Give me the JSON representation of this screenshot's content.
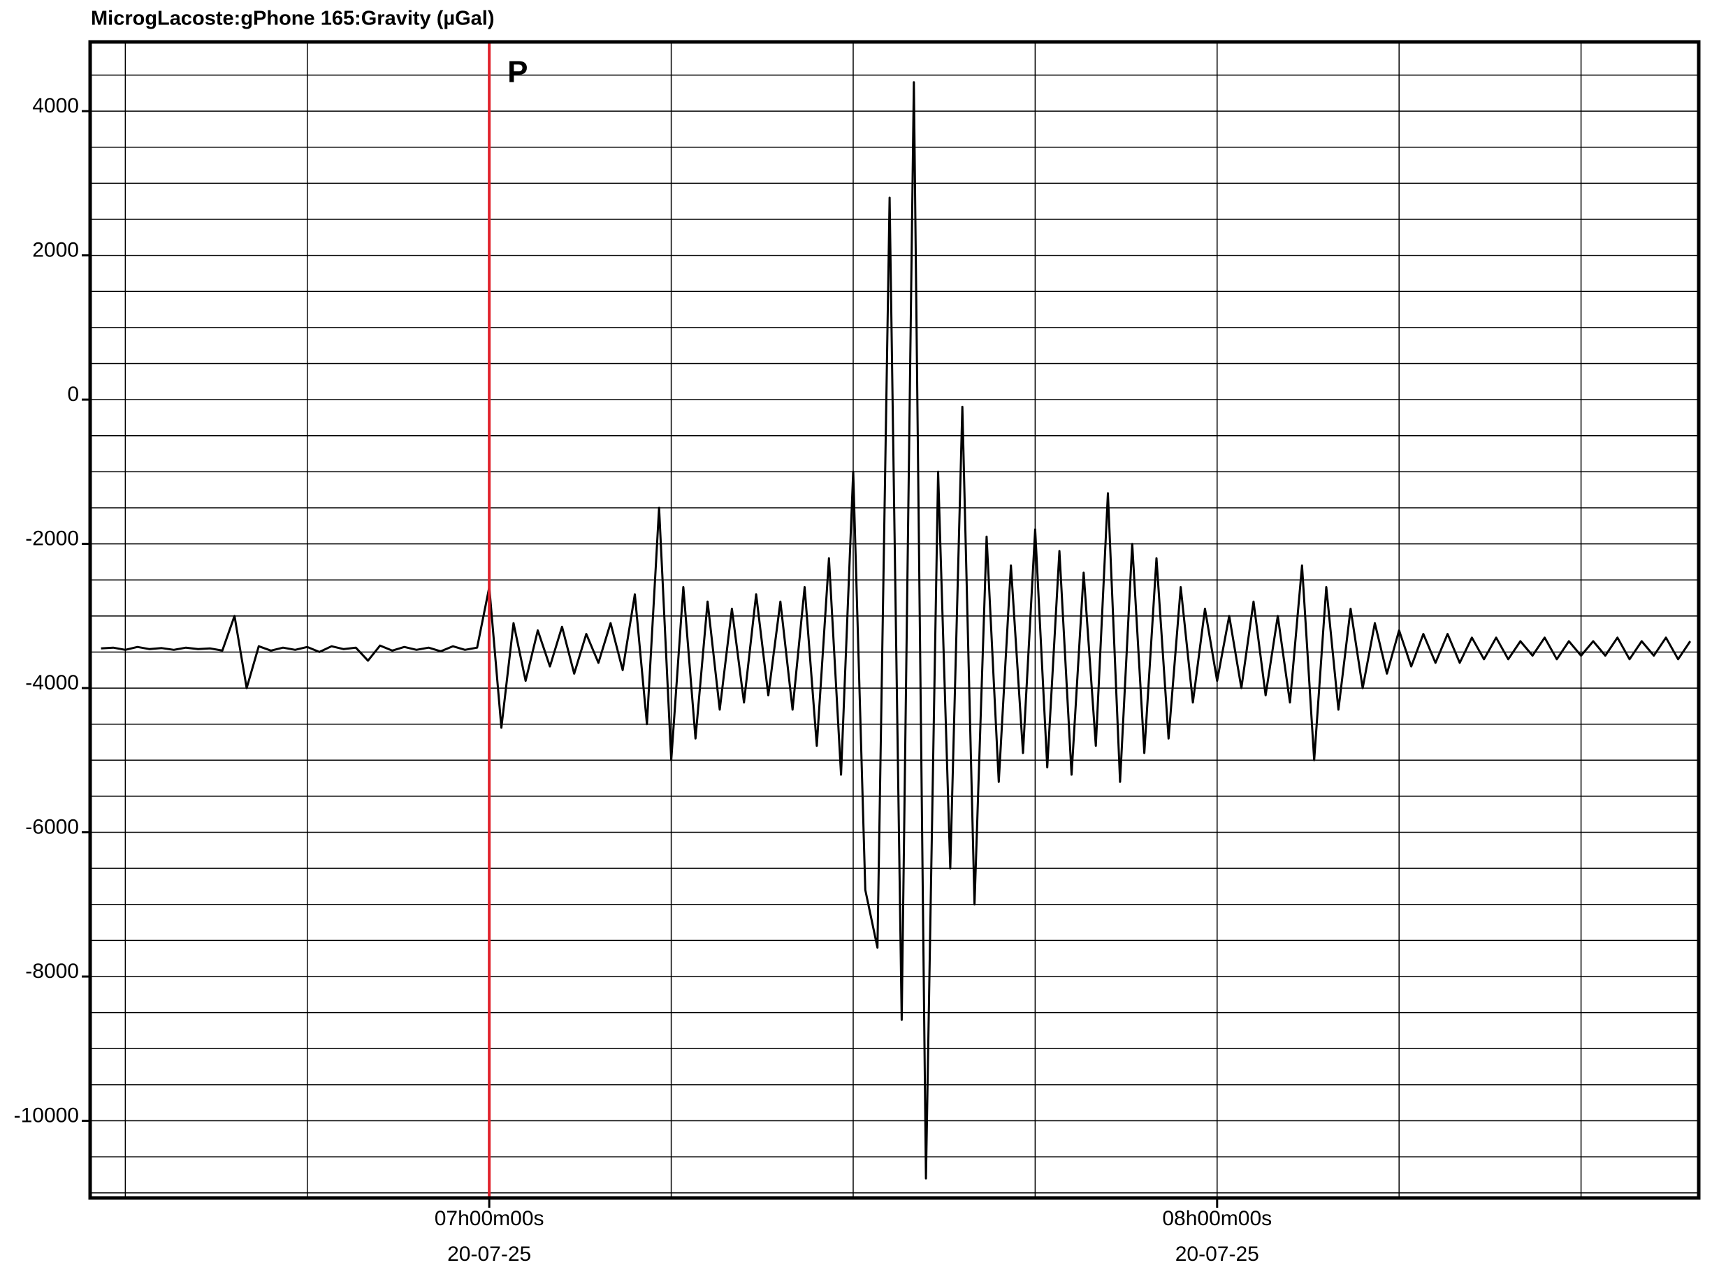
{
  "chart_data": {
    "type": "line",
    "title": "MicrogLacoste:gPhone 165:Gravity (µGal)",
    "x": [
      388,
      389,
      390,
      391,
      392,
      393,
      394,
      395,
      396,
      397,
      398,
      399,
      400,
      401,
      402,
      403,
      404,
      405,
      406,
      407,
      408,
      409,
      410,
      411,
      412,
      413,
      414,
      415,
      416,
      417,
      418,
      419,
      420,
      421,
      422,
      423,
      424,
      425,
      426,
      427,
      428,
      429,
      430,
      431,
      432,
      433,
      434,
      435,
      436,
      437,
      438,
      439,
      440,
      441,
      442,
      443,
      444,
      445,
      446,
      447,
      448,
      449,
      450,
      451,
      452,
      453,
      454,
      455,
      456,
      457,
      458,
      459,
      460,
      461,
      462,
      463,
      464,
      465,
      466,
      467,
      468,
      469,
      470,
      471,
      472,
      473,
      474,
      475,
      476,
      477,
      478,
      479,
      480,
      481,
      482,
      483,
      484,
      485,
      486,
      487,
      488,
      489,
      490,
      491,
      492,
      493,
      494,
      495,
      496,
      497,
      498,
      499,
      500,
      501,
      502,
      503,
      504,
      505,
      506,
      507,
      508,
      509,
      510,
      511,
      512,
      513,
      514,
      515,
      516,
      517,
      518,
      519
    ],
    "values": [
      -3450,
      -3440,
      -3470,
      -3430,
      -3460,
      -3445,
      -3470,
      -3440,
      -3460,
      -3450,
      -3480,
      -3000,
      -4000,
      -3420,
      -3480,
      -3440,
      -3470,
      -3430,
      -3500,
      -3420,
      -3460,
      -3440,
      -3620,
      -3410,
      -3480,
      -3430,
      -3470,
      -3440,
      -3490,
      -3420,
      -3470,
      -3440,
      -2600,
      -4550,
      -3100,
      -3900,
      -3200,
      -3700,
      -3150,
      -3800,
      -3250,
      -3650,
      -3100,
      -3750,
      -2700,
      -4500,
      -1500,
      -5000,
      -2600,
      -4700,
      -2800,
      -4300,
      -2900,
      -4200,
      -2700,
      -4100,
      -2800,
      -4300,
      -2600,
      -4800,
      -2200,
      -5200,
      -1000,
      -6800,
      -7600,
      2800,
      -8600,
      4400,
      -10800,
      -1000,
      -6500,
      -100,
      -7000,
      -1900,
      -5300,
      -2300,
      -4900,
      -1800,
      -5100,
      -2100,
      -5200,
      -2400,
      -4800,
      -1300,
      -5300,
      -2000,
      -4900,
      -2200,
      -4700,
      -2600,
      -4200,
      -2900,
      -3900,
      -3000,
      -4000,
      -2800,
      -4100,
      -3000,
      -4200,
      -2300,
      -5000,
      -2600,
      -4300,
      -2900,
      -4000,
      -3100,
      -3800,
      -3200,
      -3700,
      -3250,
      -3650,
      -3250,
      -3650,
      -3300,
      -3600,
      -3300,
      -3600,
      -3350,
      -3550,
      -3300,
      -3600,
      -3350,
      -3550,
      -3350,
      -3550,
      -3300,
      -3600,
      -3350,
      -3550,
      -3300,
      -3600,
      -3350
    ],
    "color": "#000000",
    "xlim": [
      387.1,
      519.7
    ],
    "ylim": [
      -11070,
      4960
    ],
    "xticks": [
      {
        "value": 420,
        "label": "07h00m00s"
      },
      {
        "value": 480,
        "label": "08h00m00s"
      }
    ],
    "xtick_dates": [
      "20-07-25",
      "20-07-25"
    ],
    "xminor": [
      390,
      405,
      435,
      450,
      465,
      495,
      510
    ],
    "yticks": [
      4000,
      2000,
      0,
      -2000,
      -4000,
      -6000,
      -8000,
      -10000
    ],
    "yminor": [
      4500,
      3500,
      3000,
      2500,
      1500,
      1000,
      500,
      -500,
      -1000,
      -1500,
      -2500,
      -3000,
      -3500,
      -4500,
      -5000,
      -5500,
      -6500,
      -7000,
      -7500,
      -8500,
      -9000,
      -9500,
      -10500,
      -11000
    ],
    "grid": true,
    "annotations": [
      {
        "x": 420,
        "label": "P",
        "color": "#e0202a"
      }
    ]
  }
}
